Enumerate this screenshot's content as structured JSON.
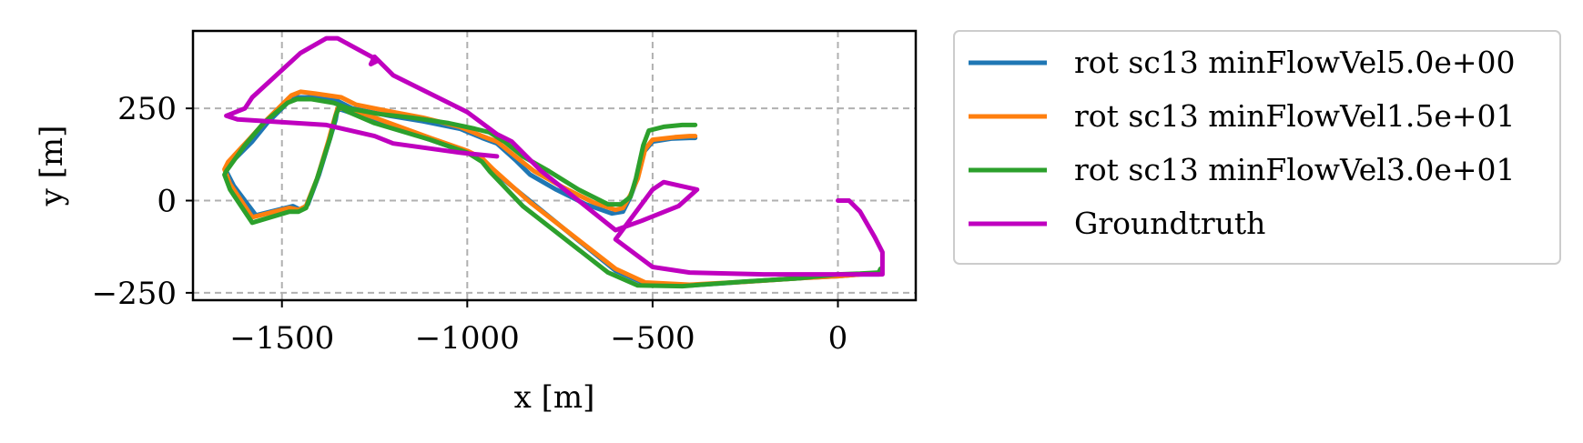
{
  "chart_data": {
    "type": "line",
    "title": "",
    "xlabel": "x [m]",
    "ylabel": "y [m]",
    "xlim": [
      -1740,
      210
    ],
    "ylim": [
      -270,
      460
    ],
    "xticks": [
      -1500,
      -1000,
      -500,
      0
    ],
    "xtick_labels": [
      "−1500",
      "−1000",
      "−500",
      "0"
    ],
    "yticks": [
      -250,
      0,
      250
    ],
    "ytick_labels": [
      "−250",
      "0",
      "250"
    ],
    "grid": true,
    "legend_position": "outside-right",
    "series": [
      {
        "name": "rot sc13 minFlowVel5.0e+00",
        "color": "#1f77b4",
        "x": [
          -385,
          -400,
          -450,
          -500,
          -525,
          -545,
          -560,
          -580,
          -610,
          -680,
          -760,
          -830,
          -870,
          -920,
          -960,
          -1020,
          -1120,
          -1210,
          -1310,
          -1350,
          -1420,
          -1460,
          -1480,
          -1540,
          -1580,
          -1640,
          -1650,
          -1630,
          -1570,
          -1470,
          -1450,
          -1430,
          -1400,
          -1370,
          -1355,
          -1350,
          -1320,
          -1250,
          -1100,
          -1000,
          -960,
          -930,
          -820,
          -600,
          -520,
          -400,
          -250,
          -100,
          0,
          60,
          110,
          115
        ],
        "y": [
          170,
          170,
          168,
          160,
          130,
          50,
          10,
          -30,
          -35,
          -10,
          30,
          70,
          110,
          155,
          170,
          195,
          215,
          230,
          250,
          270,
          280,
          280,
          270,
          210,
          160,
          100,
          80,
          40,
          -40,
          -15,
          -25,
          -10,
          70,
          170,
          220,
          250,
          240,
          215,
          165,
          130,
          110,
          80,
          -10,
          -190,
          -225,
          -230,
          -220,
          -210,
          -205,
          -200,
          -200,
          -190
        ]
      },
      {
        "name": "rot sc13 minFlowVel1.5e+01",
        "color": "#ff7f0e",
        "x": [
          -385,
          -400,
          -440,
          -500,
          -520,
          -540,
          -560,
          -580,
          -600,
          -660,
          -740,
          -820,
          -870,
          -920,
          -960,
          -1020,
          -1120,
          -1200,
          -1300,
          -1340,
          -1410,
          -1450,
          -1475,
          -1540,
          -1585,
          -1645,
          -1655,
          -1640,
          -1580,
          -1480,
          -1455,
          -1435,
          -1405,
          -1375,
          -1360,
          -1350,
          -1320,
          -1250,
          -1100,
          -1000,
          -960,
          -930,
          -830,
          -600,
          -520,
          -400,
          -250,
          -100,
          0,
          60,
          110,
          115
        ],
        "y": [
          175,
          175,
          172,
          165,
          140,
          60,
          15,
          -20,
          -25,
          -5,
          35,
          80,
          120,
          160,
          175,
          200,
          225,
          240,
          260,
          280,
          290,
          295,
          285,
          220,
          170,
          105,
          85,
          45,
          -45,
          -20,
          -25,
          -15,
          60,
          160,
          215,
          250,
          250,
          225,
          170,
          135,
          115,
          85,
          -5,
          -185,
          -222,
          -228,
          -220,
          -210,
          -205,
          -200,
          -198,
          -188
        ]
      },
      {
        "name": "rot sc13 minFlowVel3.0e+01",
        "color": "#2ca02c",
        "x": [
          -385,
          -420,
          -470,
          -510,
          -525,
          -545,
          -560,
          -585,
          -620,
          -700,
          -780,
          -850,
          -900,
          -940,
          -980,
          -1050,
          -1150,
          -1240,
          -1320,
          -1360,
          -1420,
          -1460,
          -1485,
          -1550,
          -1600,
          -1650,
          -1655,
          -1640,
          -1580,
          -1480,
          -1455,
          -1435,
          -1405,
          -1370,
          -1355,
          -1345,
          -1320,
          -1250,
          -1100,
          -1000,
          -960,
          -940,
          -850,
          -620,
          -540,
          -420,
          -260,
          -100,
          0,
          60,
          110,
          115
        ],
        "y": [
          205,
          205,
          200,
          190,
          150,
          60,
          10,
          -10,
          -10,
          30,
          80,
          120,
          160,
          185,
          195,
          210,
          225,
          235,
          250,
          265,
          275,
          275,
          265,
          210,
          150,
          80,
          70,
          30,
          -60,
          -30,
          -30,
          -20,
          60,
          170,
          230,
          255,
          240,
          210,
          165,
          130,
          105,
          80,
          -15,
          -195,
          -230,
          -232,
          -220,
          -210,
          -200,
          -198,
          -195,
          -185
        ]
      },
      {
        "name": "Groundtruth",
        "color": "#bf00bf",
        "x": [
          0,
          30,
          60,
          100,
          120,
          120,
          100,
          0,
          -200,
          -400,
          -500,
          -600,
          -500,
          -470,
          -380,
          -430,
          -530,
          -600,
          -700,
          -800,
          -860,
          -880,
          -920,
          -1000,
          -1200,
          -1250,
          -1260,
          -1240,
          -1350,
          -1380,
          -1450,
          -1580,
          -1600,
          -1650,
          -1620,
          -1380,
          -1250,
          -1200,
          -1020,
          -920
        ],
        "y": [
          0,
          0,
          -30,
          -100,
          -140,
          -200,
          -200,
          -200,
          -200,
          -195,
          -180,
          -105,
          30,
          50,
          30,
          -15,
          -55,
          -80,
          0,
          80,
          140,
          160,
          180,
          240,
          340,
          390,
          370,
          380,
          440,
          440,
          400,
          280,
          250,
          230,
          220,
          205,
          175,
          155,
          130,
          120
        ]
      }
    ]
  }
}
